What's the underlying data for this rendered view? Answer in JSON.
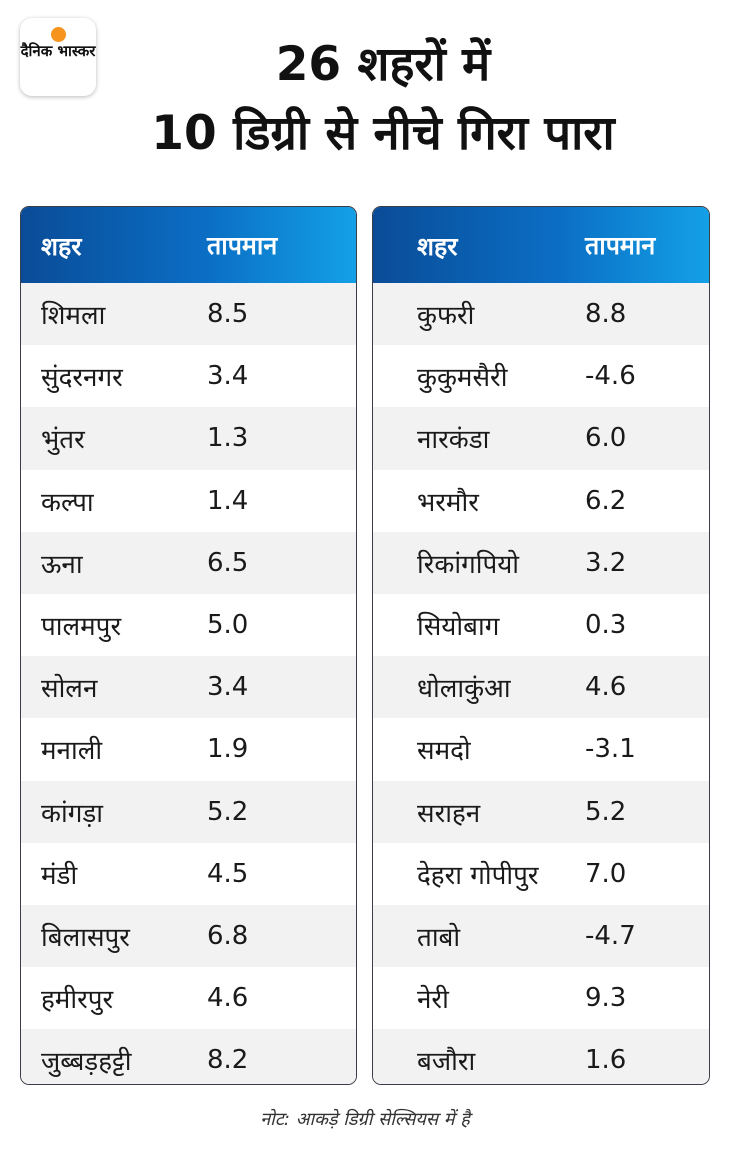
{
  "logo": {
    "text": "दैनिक भास्कर"
  },
  "title": {
    "line1": "26 शहरों में",
    "line2": "10 डिग्री से नीचे गिरा पारा"
  },
  "table_left": {
    "headers": {
      "city": "शहर",
      "temp": "तापमान"
    },
    "rows": [
      {
        "city": "शिमला",
        "temp": "8.5"
      },
      {
        "city": "सुंदरनगर",
        "temp": "3.4"
      },
      {
        "city": "भुंतर",
        "temp": "1.3"
      },
      {
        "city": "कल्पा",
        "temp": "1.4"
      },
      {
        "city": "ऊना",
        "temp": "6.5"
      },
      {
        "city": "पालमपुर",
        "temp": "5.0"
      },
      {
        "city": "सोलन",
        "temp": "3.4"
      },
      {
        "city": "मनाली",
        "temp": "1.9"
      },
      {
        "city": "कांगड़ा",
        "temp": "5.2"
      },
      {
        "city": "मंडी",
        "temp": "4.5"
      },
      {
        "city": "बिलासपुर",
        "temp": "6.8"
      },
      {
        "city": "हमीरपुर",
        "temp": "4.6"
      },
      {
        "city": "जुब्बड़हट्टी",
        "temp": "8.2"
      }
    ]
  },
  "table_right": {
    "headers": {
      "city": "शहर",
      "temp": "तापमान"
    },
    "rows": [
      {
        "city": "कुफरी",
        "temp": "8.8"
      },
      {
        "city": "कुकुमसैरी",
        "temp": "-4.6"
      },
      {
        "city": "नारकंडा",
        "temp": "6.0"
      },
      {
        "city": "भरमौर",
        "temp": "6.2"
      },
      {
        "city": "रिकांगपियो",
        "temp": "3.2"
      },
      {
        "city": "सियोबाग",
        "temp": "0.3"
      },
      {
        "city": "धोलाकुंआ",
        "temp": "4.6"
      },
      {
        "city": "समदो",
        "temp": "-3.1"
      },
      {
        "city": "सराहन",
        "temp": "5.2"
      },
      {
        "city": "देहरा गोपीपुर",
        "temp": "7.0"
      },
      {
        "city": "ताबो",
        "temp": "-4.7"
      },
      {
        "city": "नेरी",
        "temp": "9.3"
      },
      {
        "city": "बजौरा",
        "temp": "1.6"
      }
    ]
  },
  "note": "नोट: आकड़े डिग्री सेल्सियस में है",
  "colors": {
    "header_gradient_start": "#0a4c98",
    "header_gradient_end": "#13a0e6",
    "logo_sun": "#f7941d",
    "row_stripe": "#f2f2f2"
  }
}
